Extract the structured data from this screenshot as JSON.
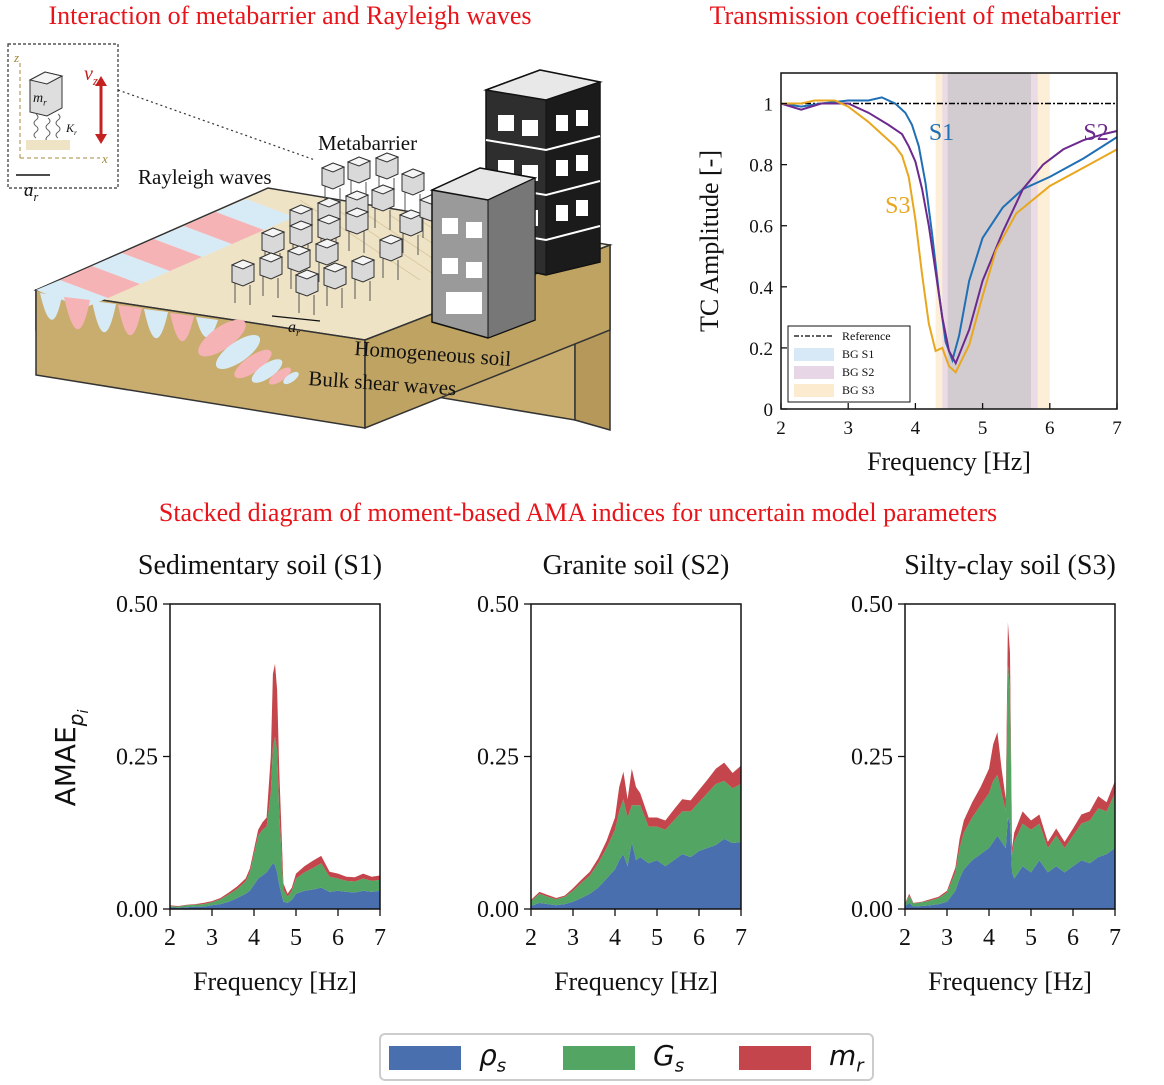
{
  "titles": {
    "illustration": "Interaction of metabarrier and Rayleigh waves",
    "tc": "Transmission coefficient of metabarrier",
    "stacked": "Stacked diagram of moment-based AMA indices for uncertain model parameters"
  },
  "illustration": {
    "labels": {
      "rayleigh": "Rayleigh waves",
      "metabarrier": "Metabarrier",
      "soil": "Homogeneous soil",
      "bulk": "Bulk shear waves",
      "spacing": "a_r",
      "inset_mass": "m_r",
      "inset_spring": "K_r",
      "inset_velocity": "v_z",
      "inset_z": "z",
      "inset_x": "x",
      "inset_spacing": "a_r"
    },
    "colors": {
      "soil": "#c9ad6e",
      "wave_pink": "#f6b3b6",
      "wave_blue": "#d7ebf7",
      "building_dark": "#2e2e2e",
      "building_grey": "#9a9a9a"
    }
  },
  "chart_data": [
    {
      "id": "tc",
      "type": "line",
      "title": "Transmission coefficient of metabarrier",
      "xlabel": "Frequency [Hz]",
      "ylabel": "TC Amplitude [-]",
      "xlim": [
        2,
        7
      ],
      "ylim": [
        0,
        1.1
      ],
      "xticks": [
        "2",
        "3",
        "4",
        "5",
        "6",
        "7"
      ],
      "yticks": [
        "0",
        "0.2",
        "0.4",
        "0.6",
        "0.8",
        "1"
      ],
      "bands": [
        {
          "name": "BG S1",
          "range": [
            4.48,
            5.72
          ],
          "color": "#d7e9f6"
        },
        {
          "name": "BG S2",
          "range": [
            4.4,
            5.82
          ],
          "color": "#e7d7e6"
        },
        {
          "name": "BG S3",
          "range": [
            4.3,
            6.0
          ],
          "color": "#fdebd0"
        }
      ],
      "legend": [
        "Reference",
        "BG S1",
        "BG S2",
        "BG S3"
      ],
      "legend_position": "lower-left",
      "series": [
        {
          "name": "Reference",
          "color": "#000000",
          "dash": true,
          "x": [
            2,
            7
          ],
          "y": [
            1.0,
            1.0
          ]
        },
        {
          "name": "S1",
          "color": "#1f6fb4",
          "x": [
            2.0,
            2.3,
            2.6,
            3.0,
            3.3,
            3.5,
            3.7,
            3.85,
            3.95,
            4.05,
            4.15,
            4.25,
            4.35,
            4.45,
            4.55,
            4.65,
            4.8,
            5.0,
            5.3,
            5.6,
            6.0,
            6.5,
            7.0
          ],
          "y": [
            1.0,
            0.99,
            1.0,
            1.01,
            1.01,
            1.02,
            1.0,
            0.97,
            0.93,
            0.86,
            0.74,
            0.57,
            0.38,
            0.22,
            0.16,
            0.24,
            0.42,
            0.56,
            0.66,
            0.72,
            0.76,
            0.82,
            0.89
          ]
        },
        {
          "name": "S2",
          "color": "#6c2a8e",
          "x": [
            2.0,
            2.3,
            2.6,
            3.0,
            3.3,
            3.6,
            3.8,
            3.9,
            4.0,
            4.1,
            4.2,
            4.3,
            4.4,
            4.5,
            4.6,
            4.8,
            5.0,
            5.3,
            5.6,
            5.9,
            6.2,
            6.5,
            6.8,
            7.0
          ],
          "y": [
            1.0,
            0.98,
            1.0,
            1.0,
            0.97,
            0.93,
            0.9,
            0.86,
            0.81,
            0.72,
            0.6,
            0.45,
            0.3,
            0.19,
            0.15,
            0.26,
            0.42,
            0.58,
            0.72,
            0.8,
            0.85,
            0.88,
            0.9,
            0.91
          ]
        },
        {
          "name": "S3",
          "color": "#e8a71e",
          "x": [
            2.0,
            2.3,
            2.5,
            2.8,
            3.0,
            3.3,
            3.5,
            3.7,
            3.8,
            3.9,
            4.0,
            4.1,
            4.2,
            4.3,
            4.4,
            4.5,
            4.6,
            4.8,
            5.0,
            5.2,
            5.5,
            6.0,
            6.5,
            7.0
          ],
          "y": [
            1.0,
            1.0,
            1.01,
            1.01,
            0.99,
            0.94,
            0.9,
            0.86,
            0.83,
            0.76,
            0.62,
            0.44,
            0.28,
            0.19,
            0.2,
            0.14,
            0.12,
            0.21,
            0.37,
            0.52,
            0.64,
            0.73,
            0.79,
            0.85
          ]
        }
      ],
      "annotations": [
        {
          "text": "S1",
          "color": "#1f6fb4",
          "x": 4.2,
          "y": 0.96
        },
        {
          "text": "S2",
          "color": "#6c2a8e",
          "x": 6.5,
          "y": 0.96
        },
        {
          "text": "S3",
          "color": "#e8a71e",
          "x": 3.55,
          "y": 0.72
        }
      ]
    },
    {
      "id": "s1",
      "type": "area",
      "stacked": true,
      "title": "Sedimentary soil (S1)",
      "xlabel": "Frequency [Hz]",
      "ylabel": "AMAE_{p_i}",
      "xlim": [
        2,
        7
      ],
      "ylim": [
        0,
        0.5
      ],
      "xticks": [
        "2",
        "3",
        "4",
        "5",
        "6",
        "7"
      ],
      "yticks": [
        "0.00",
        "0.25",
        "0.50"
      ],
      "x": [
        2.0,
        2.2,
        2.4,
        2.6,
        2.8,
        3.0,
        3.2,
        3.4,
        3.6,
        3.8,
        3.9,
        4.0,
        4.1,
        4.2,
        4.3,
        4.4,
        4.45,
        4.5,
        4.55,
        4.6,
        4.7,
        4.8,
        4.9,
        5.0,
        5.2,
        5.4,
        5.6,
        5.8,
        6.0,
        6.2,
        6.4,
        6.6,
        6.8,
        7.0
      ],
      "series": [
        {
          "name": "ρ_s",
          "color": "#4a6fae",
          "values": [
            0.003,
            0.002,
            0.003,
            0.004,
            0.004,
            0.006,
            0.008,
            0.012,
            0.018,
            0.025,
            0.03,
            0.04,
            0.05,
            0.055,
            0.06,
            0.07,
            0.075,
            0.072,
            0.06,
            0.04,
            0.012,
            0.01,
            0.015,
            0.025,
            0.03,
            0.032,
            0.035,
            0.028,
            0.03,
            0.028,
            0.027,
            0.03,
            0.028,
            0.03
          ]
        },
        {
          "name": "G_s",
          "color": "#52a562",
          "values": [
            0.002,
            0.002,
            0.003,
            0.003,
            0.004,
            0.005,
            0.008,
            0.012,
            0.015,
            0.02,
            0.03,
            0.05,
            0.07,
            0.075,
            0.075,
            0.12,
            0.19,
            0.21,
            0.2,
            0.12,
            0.02,
            0.01,
            0.015,
            0.025,
            0.03,
            0.035,
            0.04,
            0.025,
            0.02,
            0.018,
            0.018,
            0.02,
            0.018,
            0.018
          ]
        },
        {
          "name": "m_r",
          "color": "#c4464c",
          "values": [
            0.001,
            0.001,
            0.001,
            0.001,
            0.002,
            0.002,
            0.002,
            0.003,
            0.004,
            0.005,
            0.006,
            0.008,
            0.01,
            0.012,
            0.015,
            0.06,
            0.12,
            0.12,
            0.1,
            0.07,
            0.01,
            0.005,
            0.005,
            0.008,
            0.01,
            0.012,
            0.012,
            0.008,
            0.008,
            0.007,
            0.007,
            0.008,
            0.007,
            0.007
          ]
        }
      ]
    },
    {
      "id": "s2",
      "type": "area",
      "stacked": true,
      "title": "Granite soil (S2)",
      "xlabel": "Frequency [Hz]",
      "ylabel": "",
      "xlim": [
        2,
        7
      ],
      "ylim": [
        0,
        0.5
      ],
      "xticks": [
        "2",
        "3",
        "4",
        "5",
        "6",
        "7"
      ],
      "yticks": [
        "0.00",
        "0.25",
        "0.50"
      ],
      "x": [
        2.0,
        2.2,
        2.4,
        2.6,
        2.8,
        3.0,
        3.2,
        3.4,
        3.6,
        3.8,
        4.0,
        4.1,
        4.2,
        4.3,
        4.4,
        4.5,
        4.6,
        4.8,
        5.0,
        5.2,
        5.4,
        5.6,
        5.8,
        6.0,
        6.2,
        6.4,
        6.6,
        6.8,
        7.0
      ],
      "series": [
        {
          "name": "ρ_s",
          "color": "#4a6fae",
          "values": [
            0.005,
            0.01,
            0.008,
            0.006,
            0.008,
            0.012,
            0.018,
            0.025,
            0.035,
            0.05,
            0.065,
            0.08,
            0.09,
            0.07,
            0.11,
            0.08,
            0.085,
            0.075,
            0.08,
            0.07,
            0.08,
            0.09,
            0.085,
            0.095,
            0.1,
            0.105,
            0.115,
            0.108,
            0.11
          ]
        },
        {
          "name": "G_s",
          "color": "#52a562",
          "values": [
            0.008,
            0.015,
            0.012,
            0.01,
            0.012,
            0.018,
            0.025,
            0.03,
            0.04,
            0.05,
            0.065,
            0.08,
            0.09,
            0.08,
            0.06,
            0.09,
            0.085,
            0.06,
            0.055,
            0.06,
            0.065,
            0.07,
            0.075,
            0.08,
            0.09,
            0.1,
            0.095,
            0.09,
            0.095
          ]
        },
        {
          "name": "m_r",
          "color": "#c4464c",
          "values": [
            0.002,
            0.003,
            0.003,
            0.002,
            0.002,
            0.004,
            0.005,
            0.006,
            0.008,
            0.012,
            0.02,
            0.04,
            0.045,
            0.03,
            0.06,
            0.03,
            0.02,
            0.015,
            0.015,
            0.015,
            0.018,
            0.02,
            0.018,
            0.02,
            0.022,
            0.025,
            0.03,
            0.025,
            0.03
          ]
        }
      ]
    },
    {
      "id": "s3",
      "type": "area",
      "stacked": true,
      "title": "Silty-clay soil (S3)",
      "xlabel": "Frequency [Hz]",
      "ylabel": "",
      "xlim": [
        2,
        7
      ],
      "ylim": [
        0,
        0.5
      ],
      "xticks": [
        "2",
        "3",
        "4",
        "5",
        "6",
        "7"
      ],
      "yticks": [
        "0.00",
        "0.25",
        "0.50"
      ],
      "x": [
        2.0,
        2.1,
        2.2,
        2.4,
        2.6,
        2.8,
        3.0,
        3.2,
        3.3,
        3.4,
        3.6,
        3.8,
        4.0,
        4.1,
        4.2,
        4.3,
        4.4,
        4.45,
        4.5,
        4.55,
        4.6,
        4.8,
        5.0,
        5.2,
        5.4,
        5.6,
        5.8,
        6.0,
        6.2,
        6.4,
        6.6,
        6.8,
        7.0
      ],
      "series": [
        {
          "name": "ρ_s",
          "color": "#4a6fae",
          "values": [
            0.004,
            0.01,
            0.004,
            0.005,
            0.006,
            0.008,
            0.012,
            0.03,
            0.05,
            0.065,
            0.08,
            0.09,
            0.1,
            0.11,
            0.12,
            0.11,
            0.1,
            0.15,
            0.14,
            0.06,
            0.05,
            0.07,
            0.06,
            0.08,
            0.06,
            0.07,
            0.06,
            0.07,
            0.08,
            0.075,
            0.085,
            0.09,
            0.1
          ]
        },
        {
          "name": "G_s",
          "color": "#52a562",
          "values": [
            0.004,
            0.012,
            0.005,
            0.006,
            0.008,
            0.01,
            0.015,
            0.03,
            0.05,
            0.06,
            0.07,
            0.08,
            0.09,
            0.1,
            0.1,
            0.08,
            0.06,
            0.25,
            0.22,
            0.03,
            0.06,
            0.07,
            0.07,
            0.06,
            0.04,
            0.05,
            0.04,
            0.05,
            0.06,
            0.07,
            0.08,
            0.07,
            0.09
          ]
        },
        {
          "name": "m_r",
          "color": "#c4464c",
          "values": [
            0.001,
            0.003,
            0.001,
            0.001,
            0.002,
            0.002,
            0.003,
            0.008,
            0.015,
            0.02,
            0.025,
            0.03,
            0.04,
            0.06,
            0.07,
            0.04,
            0.02,
            0.07,
            0.06,
            0.01,
            0.015,
            0.02,
            0.015,
            0.015,
            0.01,
            0.012,
            0.01,
            0.012,
            0.015,
            0.015,
            0.02,
            0.015,
            0.02
          ]
        }
      ]
    }
  ],
  "legend": {
    "items": [
      {
        "base": "ρ",
        "sub": "s",
        "color": "#4a6fae"
      },
      {
        "base": "G",
        "sub": "s",
        "color": "#52a562"
      },
      {
        "base": "m",
        "sub": "r",
        "color": "#c4464c"
      }
    ]
  }
}
